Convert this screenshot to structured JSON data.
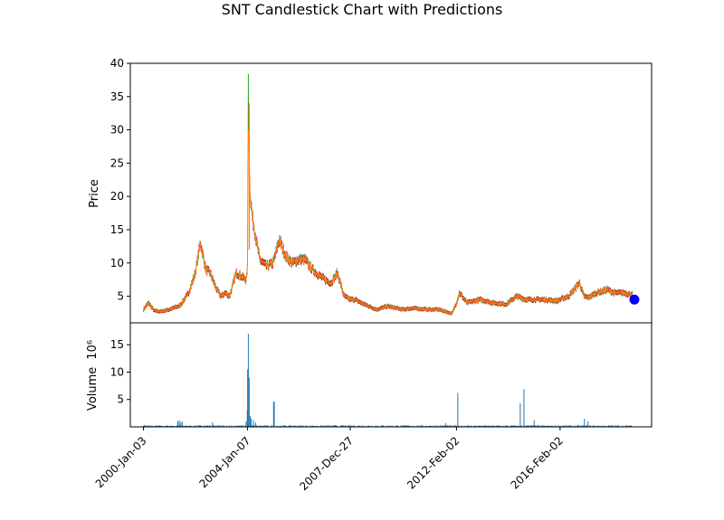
{
  "chart_data": {
    "type": "candlestick",
    "title": "SNT Candlestick Chart with Predictions",
    "price_panel": {
      "ylabel": "Price",
      "ylim": [
        1.0,
        40.0
      ],
      "yticks": [
        5,
        10,
        15,
        20,
        25,
        30,
        35,
        40
      ],
      "up_color": "#2ca02c",
      "down_color": "#d62728",
      "line_color": "#ff7f0e",
      "series": [
        {
          "name": "close",
          "x": [
            "2000-01-03",
            "2000-03-15",
            "2000-06-01",
            "2000-09-01",
            "2001-01-02",
            "2001-06-01",
            "2001-10-01",
            "2002-01-02",
            "2002-03-15",
            "2002-06-01",
            "2002-08-01",
            "2002-11-01",
            "2003-01-02",
            "2003-03-01",
            "2003-05-01",
            "2003-08-01",
            "2003-10-15",
            "2003-12-15",
            "2004-01-07",
            "2004-01-20",
            "2004-02-10",
            "2004-03-15",
            "2004-05-01",
            "2004-07-01",
            "2004-10-01",
            "2005-01-03",
            "2005-04-01",
            "2005-07-01",
            "2005-10-01",
            "2006-01-03",
            "2006-04-01",
            "2006-06-01",
            "2006-09-01",
            "2007-01-02",
            "2007-04-01",
            "2007-07-01",
            "2007-10-01",
            "2007-12-27",
            "2008-03-01",
            "2008-06-01",
            "2009-01-02",
            "2009-06-01",
            "2010-01-04",
            "2010-06-01",
            "2011-01-03",
            "2011-06-01",
            "2011-12-01",
            "2012-02-02",
            "2012-03-15",
            "2012-07-01",
            "2013-01-02",
            "2013-07-01",
            "2014-01-02",
            "2014-06-01",
            "2014-10-01",
            "2015-01-02",
            "2015-06-01",
            "2016-01-04",
            "2016-02-02",
            "2016-06-01",
            "2016-11-01",
            "2017-01-03",
            "2017-03-01",
            "2017-07-01",
            "2017-12-01",
            "2018-03-01",
            "2018-08-01",
            "2018-11-15"
          ],
          "y": [
            3.0,
            4.0,
            2.8,
            2.7,
            3.0,
            3.6,
            5.5,
            8.5,
            13.0,
            9.0,
            8.5,
            6.0,
            5.0,
            5.5,
            5.0,
            8.5,
            8.0,
            7.5,
            8.5,
            35.0,
            21.0,
            17.0,
            14.0,
            10.5,
            9.5,
            10.0,
            13.5,
            11.0,
            10.0,
            10.5,
            10.5,
            9.5,
            8.5,
            7.5,
            7.0,
            8.5,
            5.0,
            4.5,
            4.5,
            4.0,
            3.0,
            3.5,
            3.0,
            3.2,
            3.0,
            3.0,
            2.4,
            4.0,
            5.5,
            4.0,
            4.5,
            4.0,
            3.8,
            5.0,
            4.5,
            4.5,
            4.5,
            4.3,
            4.5,
            5.0,
            7.0,
            5.0,
            4.8,
            5.5,
            6.0,
            5.5,
            5.5,
            5.2
          ]
        }
      ],
      "predictions": {
        "name": "prediction",
        "color": "#0000ff",
        "x": [
          "2018-12-15"
        ],
        "y": [
          4.5
        ]
      }
    },
    "volume_panel": {
      "ylabel": "Volume",
      "scale_label": "10⁶",
      "ylim": [
        0,
        19.0
      ],
      "yticks": [
        5,
        10,
        15
      ],
      "bar_color": "#1f77b4",
      "spikes": {
        "x": [
          "2001-05-01",
          "2001-05-20",
          "2001-06-10",
          "2001-07-01",
          "2002-09-01",
          "2003-12-20",
          "2004-01-05",
          "2004-01-10",
          "2004-01-15",
          "2004-01-20",
          "2004-02-01",
          "2004-02-15",
          "2004-03-01",
          "2004-04-01",
          "2004-05-01",
          "2005-01-10",
          "2005-01-20",
          "2011-09-01",
          "2012-02-20",
          "2014-07-20",
          "2014-09-10",
          "2015-02-01",
          "2017-01-10",
          "2017-03-01"
        ],
        "y": [
          1.0,
          1.2,
          0.8,
          1.0,
          0.8,
          1.0,
          3.0,
          10.5,
          5.0,
          17.0,
          9.0,
          2.0,
          1.5,
          1.2,
          0.8,
          4.6,
          4.6,
          0.7,
          6.2,
          4.3,
          6.9,
          1.2,
          1.5,
          1.0
        ]
      }
    },
    "xaxis": {
      "range": [
        "1999-07-01",
        "2019-08-15"
      ],
      "ticks": [
        "2000-01-03",
        "2004-01-07",
        "2007-12-27",
        "2012-02-02",
        "2016-02-02"
      ],
      "tick_labels": [
        "2000-Jan-03",
        "2004-Jan-07",
        "2007-Dec-27",
        "2012-Feb-02",
        "2016-Feb-02"
      ]
    },
    "grid": false
  }
}
